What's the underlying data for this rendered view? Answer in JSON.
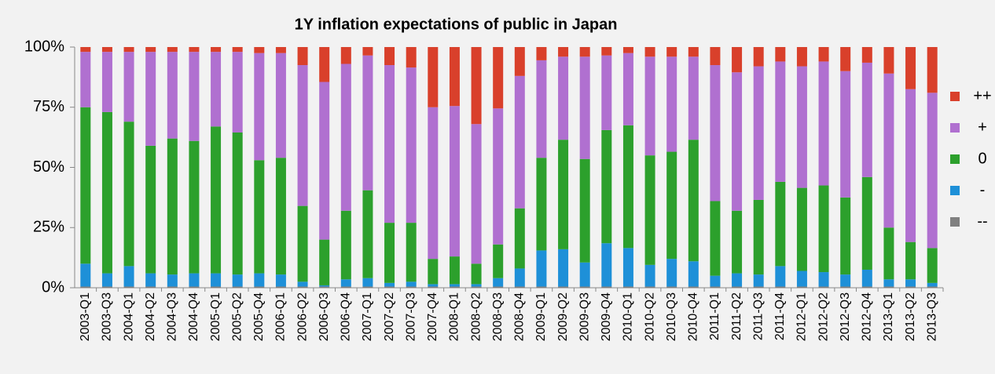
{
  "chart_data": {
    "type": "stacked_bar",
    "title": "1Y inflation expectations of public in Japan",
    "categories": [
      "2003-Q1",
      "2003-Q3",
      "2004-Q1",
      "2004-Q2",
      "2004-Q3",
      "2004-Q4",
      "2005-Q1",
      "2005-Q2",
      "2005-Q4",
      "2006-Q1",
      "2006-Q2",
      "2006-Q3",
      "2006-Q4",
      "2007-Q1",
      "2007-Q2",
      "2007-Q3",
      "2007-Q4",
      "2008-Q1",
      "2008-Q2",
      "2008-Q3",
      "2008-Q4",
      "2009-Q1",
      "2009-Q2",
      "2009-Q3",
      "2009-Q4",
      "2010-Q1",
      "2010-Q2",
      "2010-Q3",
      "2010-Q4",
      "2011-Q1",
      "2011-Q2",
      "2011-Q3",
      "2011-Q4",
      "2012-Q1",
      "2012-Q2",
      "2012-Q3",
      "2012-Q4",
      "2013-Q1",
      "2013-Q2",
      "2013-Q3"
    ],
    "series": [
      {
        "name": "--",
        "color": "#808080",
        "values": [
          0.5,
          0.5,
          0.5,
          0.5,
          0.5,
          0.5,
          0.5,
          0.5,
          0.5,
          0.5,
          0.5,
          0.5,
          0.5,
          0.5,
          0.5,
          0.5,
          0.5,
          0.5,
          0.5,
          0.5,
          0.5,
          0.5,
          0.5,
          0.5,
          0.5,
          0.5,
          0.5,
          0.5,
          0.5,
          0.5,
          0.5,
          0.5,
          0.5,
          0.5,
          0.5,
          0.5,
          0.5,
          0.5,
          0.5,
          0.5
        ]
      },
      {
        "name": "-",
        "color": "#1e90d8",
        "values": [
          9.5,
          5.5,
          8.5,
          5.5,
          5,
          5.5,
          5.5,
          5,
          5.5,
          5,
          2,
          0.5,
          3,
          3.5,
          1.5,
          2,
          1,
          1,
          1,
          3.5,
          7.5,
          15,
          15.5,
          10,
          18,
          16,
          9,
          11.5,
          10.5,
          4.5,
          5.5,
          5,
          8.5,
          6.5,
          6,
          5,
          7,
          3,
          3,
          1.5
        ]
      },
      {
        "name": "0",
        "color": "#2ca02c",
        "values": [
          65,
          67,
          60,
          53,
          56.5,
          55,
          61,
          59,
          47,
          48.5,
          31.5,
          19,
          28.5,
          36.5,
          25,
          24.5,
          10.5,
          11.5,
          8.5,
          14,
          25,
          38.5,
          45.5,
          43,
          47,
          51,
          45.5,
          44.5,
          50.5,
          31,
          26,
          31,
          35,
          34.5,
          36,
          32,
          38.5,
          21.5,
          15.5,
          14.5
        ]
      },
      {
        "name": "+",
        "color": "#b070d0",
        "values": [
          23,
          25,
          29,
          39,
          36,
          37,
          31,
          33.5,
          44.5,
          43.5,
          58.5,
          65.5,
          61,
          56,
          65.5,
          64.5,
          63,
          62.5,
          58,
          56.5,
          55,
          40.5,
          34.5,
          42.5,
          31,
          30,
          41,
          39.5,
          34.5,
          56.5,
          57.5,
          55.5,
          50,
          50.5,
          51.5,
          52.5,
          47.5,
          64,
          63.5,
          64.5
        ]
      },
      {
        "name": "++",
        "color": "#d9402b",
        "values": [
          2,
          2,
          2,
          2,
          2,
          2,
          2,
          2,
          2.5,
          2.5,
          7.5,
          14.5,
          7,
          3.5,
          7.5,
          8.5,
          25,
          24.5,
          32,
          25.5,
          12,
          5.5,
          4,
          4,
          3.5,
          2.5,
          4,
          4,
          4,
          7.5,
          10.5,
          8,
          6,
          8,
          6,
          10,
          6.5,
          11,
          17.5,
          19
        ]
      }
    ],
    "ylim": [
      0,
      100
    ],
    "yticks": [
      {
        "value": 0,
        "label": "0%"
      },
      {
        "value": 25,
        "label": "25%"
      },
      {
        "value": 50,
        "label": "50%"
      },
      {
        "value": 75,
        "label": "75%"
      },
      {
        "value": 100,
        "label": "100%"
      }
    ],
    "grid": false,
    "legend": "right"
  }
}
